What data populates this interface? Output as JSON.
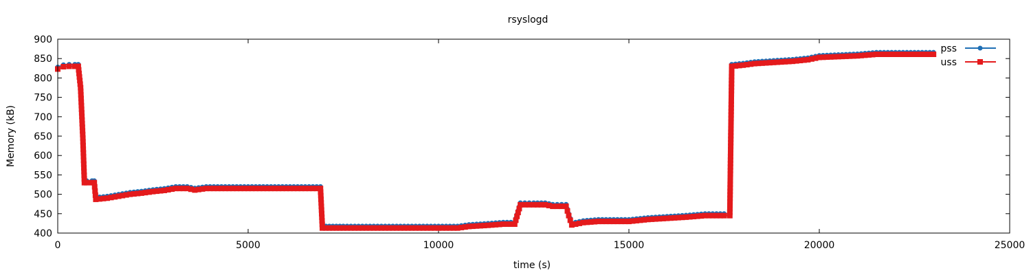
{
  "chart_data": {
    "type": "line",
    "title": "rsyslogd",
    "xlabel": "time (s)",
    "ylabel": "Memory (kB)",
    "xlim": [
      0,
      25000
    ],
    "ylim": [
      400,
      900
    ],
    "xticks": [
      0,
      5000,
      10000,
      15000,
      20000,
      25000
    ],
    "yticks": [
      400,
      450,
      500,
      550,
      600,
      650,
      700,
      750,
      800,
      850,
      900
    ],
    "grid": false,
    "legend_position": "top-right",
    "series": [
      {
        "name": "pss",
        "color": "#1f6fb5",
        "marker": "circle",
        "points": [
          [
            0,
            828
          ],
          [
            150,
            834
          ],
          [
            300,
            835
          ],
          [
            450,
            835
          ],
          [
            540,
            835
          ],
          [
            600,
            780
          ],
          [
            660,
            650
          ],
          [
            700,
            535
          ],
          [
            760,
            535
          ],
          [
            900,
            535
          ],
          [
            960,
            535
          ],
          [
            1000,
            492
          ],
          [
            1300,
            495
          ],
          [
            1600,
            500
          ],
          [
            1900,
            505
          ],
          [
            2200,
            508
          ],
          [
            2500,
            512
          ],
          [
            2800,
            515
          ],
          [
            3100,
            520
          ],
          [
            3400,
            520
          ],
          [
            3600,
            516
          ],
          [
            3900,
            520
          ],
          [
            4500,
            520
          ],
          [
            5000,
            520
          ],
          [
            5500,
            520
          ],
          [
            6000,
            520
          ],
          [
            6500,
            520
          ],
          [
            6900,
            520
          ],
          [
            6950,
            418
          ],
          [
            7500,
            418
          ],
          [
            8000,
            418
          ],
          [
            8500,
            418
          ],
          [
            9000,
            418
          ],
          [
            9500,
            418
          ],
          [
            10000,
            418
          ],
          [
            10500,
            418
          ],
          [
            10800,
            422
          ],
          [
            11300,
            425
          ],
          [
            11700,
            428
          ],
          [
            12000,
            428
          ],
          [
            12150,
            478
          ],
          [
            12500,
            478
          ],
          [
            12800,
            478
          ],
          [
            13000,
            474
          ],
          [
            13350,
            474
          ],
          [
            13420,
            450
          ],
          [
            13500,
            426
          ],
          [
            13800,
            432
          ],
          [
            14200,
            435
          ],
          [
            14600,
            435
          ],
          [
            15000,
            435
          ],
          [
            15500,
            440
          ],
          [
            16000,
            443
          ],
          [
            16500,
            446
          ],
          [
            17000,
            450
          ],
          [
            17500,
            450
          ],
          [
            17650,
            450
          ],
          [
            17700,
            835
          ],
          [
            18000,
            838
          ],
          [
            18300,
            842
          ],
          [
            18800,
            845
          ],
          [
            19300,
            848
          ],
          [
            19700,
            852
          ],
          [
            20000,
            858
          ],
          [
            20500,
            860
          ],
          [
            21000,
            862
          ],
          [
            21500,
            866
          ],
          [
            22000,
            866
          ],
          [
            22500,
            866
          ],
          [
            23000,
            866
          ]
        ]
      },
      {
        "name": "uss",
        "color": "#e41a1c",
        "marker": "square",
        "points": [
          [
            0,
            823
          ],
          [
            150,
            829
          ],
          [
            300,
            830
          ],
          [
            450,
            830
          ],
          [
            540,
            830
          ],
          [
            600,
            775
          ],
          [
            660,
            645
          ],
          [
            700,
            530
          ],
          [
            760,
            530
          ],
          [
            900,
            530
          ],
          [
            960,
            530
          ],
          [
            1000,
            487
          ],
          [
            1300,
            490
          ],
          [
            1600,
            495
          ],
          [
            1900,
            500
          ],
          [
            2200,
            503
          ],
          [
            2500,
            507
          ],
          [
            2800,
            510
          ],
          [
            3100,
            515
          ],
          [
            3400,
            515
          ],
          [
            3600,
            511
          ],
          [
            3900,
            515
          ],
          [
            4500,
            515
          ],
          [
            5000,
            515
          ],
          [
            5500,
            515
          ],
          [
            6000,
            515
          ],
          [
            6500,
            515
          ],
          [
            6900,
            515
          ],
          [
            6950,
            413
          ],
          [
            7500,
            413
          ],
          [
            8000,
            413
          ],
          [
            8500,
            413
          ],
          [
            9000,
            413
          ],
          [
            9500,
            413
          ],
          [
            10000,
            413
          ],
          [
            10500,
            413
          ],
          [
            10800,
            417
          ],
          [
            11300,
            420
          ],
          [
            11700,
            423
          ],
          [
            12000,
            423
          ],
          [
            12150,
            473
          ],
          [
            12500,
            473
          ],
          [
            12800,
            473
          ],
          [
            13000,
            469
          ],
          [
            13350,
            469
          ],
          [
            13420,
            445
          ],
          [
            13500,
            421
          ],
          [
            13800,
            427
          ],
          [
            14200,
            430
          ],
          [
            14600,
            430
          ],
          [
            15000,
            430
          ],
          [
            15500,
            435
          ],
          [
            16000,
            438
          ],
          [
            16500,
            441
          ],
          [
            17000,
            445
          ],
          [
            17500,
            445
          ],
          [
            17650,
            445
          ],
          [
            17700,
            830
          ],
          [
            18000,
            833
          ],
          [
            18300,
            837
          ],
          [
            18800,
            840
          ],
          [
            19300,
            843
          ],
          [
            19700,
            847
          ],
          [
            20000,
            853
          ],
          [
            20500,
            855
          ],
          [
            21000,
            857
          ],
          [
            21500,
            861
          ],
          [
            22000,
            861
          ],
          [
            22500,
            861
          ],
          [
            23000,
            861
          ]
        ]
      }
    ]
  }
}
